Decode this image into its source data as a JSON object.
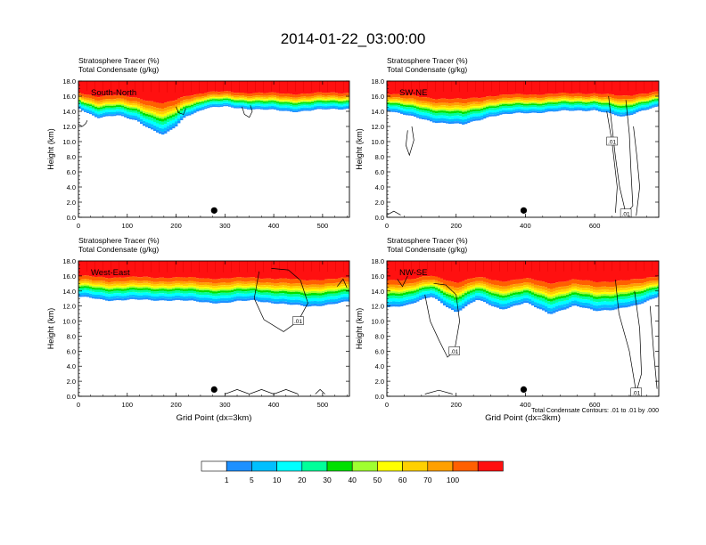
{
  "title": "2014-01-22_03:00:00",
  "footnote": "Total Condensate Contours: .01 to .01 by .000",
  "chart_data": [
    {
      "type": "heatmap",
      "title": "Stratosphere Tracer   (%)",
      "subtitle": "Total Condensate   (g/kg)",
      "label": "South-North",
      "ylabel": "Height (km)",
      "xlabel": "",
      "xlim": [
        0,
        555
      ],
      "ylim": [
        0,
        18
      ],
      "xticks": [
        0,
        100,
        200,
        300,
        400,
        500
      ],
      "yticks": [
        "0.0",
        "2.0",
        "4.0",
        "6.0",
        "8.0",
        "10.0",
        "12.0",
        "14.0",
        "16.0",
        "18.0"
      ],
      "profile": [
        {
          "x": 0,
          "top": 15.8,
          "bottom": 14.4
        },
        {
          "x": 40,
          "top": 15.8,
          "bottom": 13.2
        },
        {
          "x": 80,
          "top": 15.7,
          "bottom": 13.4
        },
        {
          "x": 120,
          "top": 15.7,
          "bottom": 12.8
        },
        {
          "x": 150,
          "top": 15.6,
          "bottom": 11.6
        },
        {
          "x": 175,
          "top": 15.5,
          "bottom": 10.8
        },
        {
          "x": 200,
          "top": 15.5,
          "bottom": 12.0
        },
        {
          "x": 220,
          "top": 15.5,
          "bottom": 13.4
        },
        {
          "x": 260,
          "top": 15.6,
          "bottom": 14.4
        },
        {
          "x": 300,
          "top": 15.7,
          "bottom": 14.6
        },
        {
          "x": 380,
          "top": 15.7,
          "bottom": 14.2
        },
        {
          "x": 440,
          "top": 15.7,
          "bottom": 14.0
        },
        {
          "x": 500,
          "top": 15.6,
          "bottom": 14.2
        },
        {
          "x": 555,
          "top": 15.6,
          "bottom": 14.4
        }
      ],
      "contours": [
        {
          "label": "",
          "points": [
            [
              0,
              12.3
            ],
            [
              8,
              12.0
            ],
            [
              15,
              12.4
            ],
            [
              18,
              12.8
            ]
          ]
        },
        {
          "label": "",
          "points": [
            [
              335,
              14.6
            ],
            [
              340,
              13.6
            ],
            [
              350,
              13.2
            ],
            [
              356,
              14.0
            ],
            [
              352,
              14.8
            ]
          ]
        },
        {
          "label": "",
          "points": [
            [
              200,
              14.6
            ],
            [
              205,
              13.8
            ],
            [
              215,
              13.6
            ],
            [
              220,
              14.4
            ]
          ]
        }
      ],
      "marker_x": 278
    },
    {
      "type": "heatmap",
      "title": "Stratosphere Tracer   (%)",
      "subtitle": "Total Condensate   (g/kg)",
      "label": "SW-NE",
      "ylabel": "Height (km)",
      "xlabel": "",
      "xlim": [
        0,
        785
      ],
      "ylim": [
        0,
        18
      ],
      "xticks": [
        0,
        200,
        400,
        600
      ],
      "yticks": [
        "0.0",
        "2.0",
        "4.0",
        "6.0",
        "8.0",
        "10.0",
        "12.0",
        "14.0",
        "16.0",
        "18.0"
      ],
      "profile": [
        {
          "x": 0,
          "top": 15.8,
          "bottom": 14.2
        },
        {
          "x": 60,
          "top": 15.8,
          "bottom": 13.4
        },
        {
          "x": 140,
          "top": 15.7,
          "bottom": 12.6
        },
        {
          "x": 220,
          "top": 15.6,
          "bottom": 12.2
        },
        {
          "x": 300,
          "top": 15.7,
          "bottom": 13.4
        },
        {
          "x": 400,
          "top": 15.7,
          "bottom": 13.8
        },
        {
          "x": 500,
          "top": 15.6,
          "bottom": 14.0
        },
        {
          "x": 600,
          "top": 15.7,
          "bottom": 14.2
        },
        {
          "x": 680,
          "top": 15.8,
          "bottom": 13.2
        },
        {
          "x": 740,
          "top": 15.8,
          "bottom": 14.2
        },
        {
          "x": 785,
          "top": 15.8,
          "bottom": 14.6
        }
      ],
      "contours": [
        {
          "label": "",
          "points": [
            [
              60,
              11.5
            ],
            [
              55,
              9.5
            ],
            [
              65,
              8.2
            ],
            [
              78,
              10.2
            ],
            [
              72,
              12.0
            ]
          ]
        },
        {
          "label": ".01",
          "points": [
            [
              640,
              16.0
            ],
            [
              650,
              12.0
            ],
            [
              660,
              8.0
            ],
            [
              672,
              4.0
            ],
            [
              690,
              0.5
            ],
            [
              710,
              1.5
            ],
            [
              705,
              6.0
            ],
            [
              700,
              11.0
            ],
            [
              690,
              15.5
            ]
          ]
        },
        {
          "label": ".01",
          "points": [
            [
              660,
              0.6
            ],
            [
              665,
              4.0
            ],
            [
              650,
              10.0
            ],
            [
              635,
              14.0
            ]
          ]
        },
        {
          "label": "",
          "points": [
            [
              720,
              0.2
            ],
            [
              730,
              4.0
            ],
            [
              722,
              8.0
            ],
            [
              712,
              12.0
            ]
          ]
        },
        {
          "label": "",
          "points": [
            [
              0,
              0.3
            ],
            [
              20,
              0.8
            ],
            [
              40,
              0.3
            ]
          ]
        }
      ],
      "marker_x": 395
    },
    {
      "type": "heatmap",
      "title": "Stratosphere Tracer   (%)",
      "subtitle": "Total Condensate   (g/kg)",
      "label": "West-East",
      "ylabel": "Height (km)",
      "xlabel": "Grid Point (dx=3km)",
      "xlim": [
        0,
        555
      ],
      "ylim": [
        0,
        18
      ],
      "xticks": [
        0,
        100,
        200,
        300,
        400,
        500
      ],
      "yticks": [
        "0.0",
        "2.0",
        "4.0",
        "6.0",
        "8.0",
        "10.0",
        "12.0",
        "14.0",
        "16.0",
        "18.0"
      ],
      "profile": [
        {
          "x": 0,
          "top": 15.6,
          "bottom": 13.2
        },
        {
          "x": 60,
          "top": 15.6,
          "bottom": 12.8
        },
        {
          "x": 120,
          "top": 15.5,
          "bottom": 12.8
        },
        {
          "x": 180,
          "top": 15.5,
          "bottom": 12.8
        },
        {
          "x": 240,
          "top": 15.5,
          "bottom": 12.6
        },
        {
          "x": 300,
          "top": 15.5,
          "bottom": 12.4
        },
        {
          "x": 360,
          "top": 15.5,
          "bottom": 12.8
        },
        {
          "x": 420,
          "top": 15.6,
          "bottom": 12.2
        },
        {
          "x": 470,
          "top": 15.7,
          "bottom": 12.0
        },
        {
          "x": 520,
          "top": 15.6,
          "bottom": 12.2
        },
        {
          "x": 555,
          "top": 15.6,
          "bottom": 12.6
        }
      ],
      "contours": [
        {
          "label": ".01",
          "points": [
            [
              370,
              16.6
            ],
            [
              360,
              13.0
            ],
            [
              380,
              10.2
            ],
            [
              420,
              8.6
            ],
            [
              450,
              10.0
            ],
            [
              470,
              12.4
            ],
            [
              455,
              15.4
            ],
            [
              430,
              16.8
            ],
            [
              395,
              17.0
            ]
          ]
        },
        {
          "label": "",
          "points": [
            [
              530,
              14.6
            ],
            [
              542,
              15.6
            ],
            [
              550,
              14.4
            ]
          ]
        },
        {
          "label": "",
          "points": [
            [
              300,
              0.3
            ],
            [
              325,
              0.9
            ],
            [
              350,
              0.3
            ],
            [
              375,
              0.9
            ],
            [
              400,
              0.3
            ],
            [
              425,
              0.9
            ],
            [
              450,
              0.3
            ]
          ]
        },
        {
          "label": "",
          "points": [
            [
              485,
              0.3
            ],
            [
              495,
              0.9
            ],
            [
              505,
              0.3
            ]
          ]
        }
      ],
      "marker_x": 278
    },
    {
      "type": "heatmap",
      "title": "Stratosphere Tracer   (%)",
      "subtitle": "Total Condensate   (g/kg)",
      "label": "NW-SE",
      "ylabel": "Height (km)",
      "xlabel": "Grid Point (dx=3km)",
      "xlim": [
        0,
        785
      ],
      "ylim": [
        0,
        18
      ],
      "xticks": [
        0,
        200,
        400,
        600
      ],
      "yticks": [
        "0.0",
        "2.0",
        "4.0",
        "6.0",
        "8.0",
        "10.0",
        "12.0",
        "14.0",
        "16.0",
        "18.0"
      ],
      "profile": [
        {
          "x": 0,
          "top": 15.8,
          "bottom": 11.8
        },
        {
          "x": 60,
          "top": 15.8,
          "bottom": 12.2
        },
        {
          "x": 130,
          "top": 15.7,
          "bottom": 13.2
        },
        {
          "x": 200,
          "top": 15.7,
          "bottom": 11.2
        },
        {
          "x": 260,
          "top": 15.7,
          "bottom": 12.8
        },
        {
          "x": 330,
          "top": 15.7,
          "bottom": 11.6
        },
        {
          "x": 400,
          "top": 15.7,
          "bottom": 12.4
        },
        {
          "x": 470,
          "top": 15.7,
          "bottom": 11.0
        },
        {
          "x": 540,
          "top": 15.7,
          "bottom": 12.0
        },
        {
          "x": 600,
          "top": 15.8,
          "bottom": 11.4
        },
        {
          "x": 660,
          "top": 15.8,
          "bottom": 11.6
        },
        {
          "x": 720,
          "top": 15.8,
          "bottom": 12.0
        },
        {
          "x": 785,
          "top": 15.8,
          "bottom": 13.4
        }
      ],
      "contours": [
        {
          "label": ".01",
          "points": [
            [
              110,
              13.5
            ],
            [
              125,
              10.0
            ],
            [
              150,
              7.5
            ],
            [
              175,
              5.2
            ],
            [
              195,
              6.0
            ],
            [
              210,
              10.0
            ],
            [
              200,
              13.5
            ],
            [
              170,
              14.8
            ],
            [
              135,
              15.0
            ]
          ]
        },
        {
          "label": ".01",
          "points": [
            [
              660,
              15.5
            ],
            [
              670,
              11.0
            ],
            [
              700,
              6.0
            ],
            [
              720,
              0.5
            ],
            [
              735,
              3.0
            ],
            [
              730,
              9.0
            ],
            [
              715,
              14.0
            ]
          ]
        },
        {
          "label": "",
          "points": [
            [
              30,
              15.6
            ],
            [
              45,
              14.6
            ],
            [
              60,
              16.0
            ]
          ]
        },
        {
          "label": "",
          "points": [
            [
              760,
              12.0
            ],
            [
              770,
              6.0
            ],
            [
              780,
              1.0
            ]
          ]
        },
        {
          "label": "",
          "points": [
            [
              110,
              0.3
            ],
            [
              150,
              0.8
            ],
            [
              190,
              0.3
            ]
          ]
        }
      ],
      "marker_x": 395
    }
  ],
  "colorbar": {
    "colors": [
      "#ffffff",
      "#1e90ff",
      "#00bfff",
      "#00ffff",
      "#00ff9a",
      "#00e000",
      "#a0ff30",
      "#ffff00",
      "#ffd000",
      "#ffa000",
      "#ff6000",
      "#ff1010"
    ],
    "labels": [
      "1",
      "5",
      "10",
      "20",
      "30",
      "40",
      "50",
      "60",
      "70",
      "100"
    ]
  }
}
